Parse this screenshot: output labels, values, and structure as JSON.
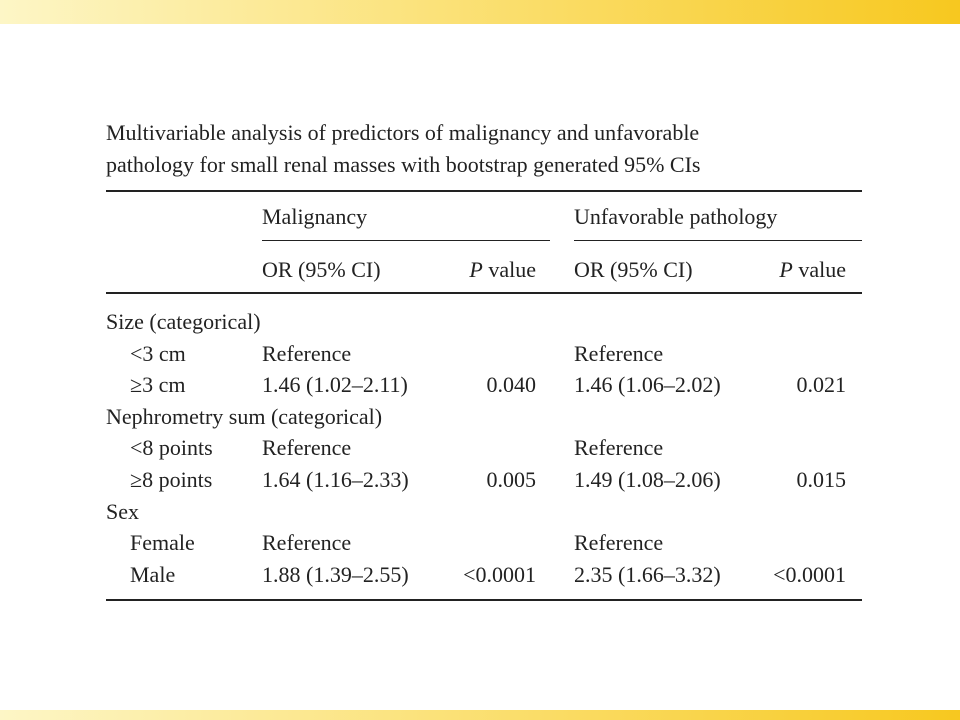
{
  "caption_lines": [
    "Multivariable analysis of predictors of malignancy and unfavorable",
    "pathology for small renal masses with bootstrap generated 95% CIs"
  ],
  "groups": [
    "Malignancy",
    "Unfavorable pathology"
  ],
  "subheaders": {
    "or_label": "OR (95% CI)",
    "p_italic": "P",
    "p_rest": " value"
  },
  "rows": [
    {
      "label": "Size (categorical)",
      "or1": "",
      "p1": "",
      "or2": "",
      "p2": ""
    },
    {
      "label": "<3 cm",
      "or1": "Reference",
      "p1": "",
      "or2": "Reference",
      "p2": ""
    },
    {
      "label": "≥3 cm",
      "or1": "1.46 (1.02–2.11)",
      "p1": "0.040",
      "or2": "1.46 (1.06–2.02)",
      "p2": "0.021"
    },
    {
      "label": "Nephrometry sum (categorical)",
      "or1": "",
      "p1": "",
      "or2": "",
      "p2": ""
    },
    {
      "label": "<8 points",
      "or1": "Reference",
      "p1": "",
      "or2": "Reference",
      "p2": ""
    },
    {
      "label": "≥8 points",
      "or1": "1.64 (1.16–2.33)",
      "p1": "0.005",
      "or2": "1.49 (1.08–2.06)",
      "p2": "0.015"
    },
    {
      "label": "Sex",
      "or1": "",
      "p1": "",
      "or2": "",
      "p2": ""
    },
    {
      "label": "Female",
      "or1": "Reference",
      "p1": "",
      "or2": "Reference",
      "p2": ""
    },
    {
      "label": "Male",
      "or1": "1.88 (1.39–2.55)",
      "p1": "<0.0001",
      "or2": "2.35 (1.66–3.32)",
      "p2": "<0.0001"
    }
  ]
}
